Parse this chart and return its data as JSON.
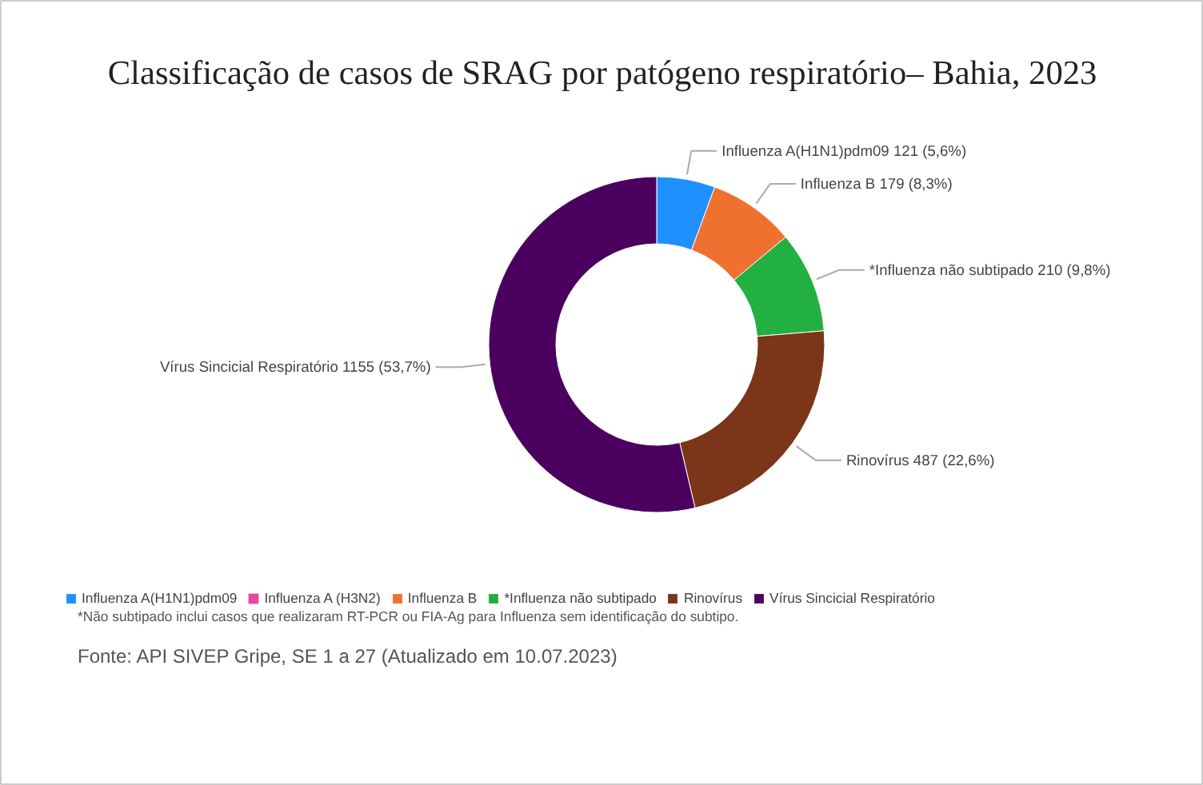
{
  "chart_data": {
    "type": "donut",
    "title": "Classificação de casos de SRAG por patógeno respiratório– Bahia, 2023",
    "categories": [
      "Influenza A(H1N1)pdm09",
      "Influenza A (H3N2)",
      "Influenza B",
      "*Influenza não subtipado",
      "Rinovírus",
      "Vírus Sincicial Respiratório"
    ],
    "values": [
      121,
      0,
      179,
      210,
      487,
      1155
    ],
    "value_labels": [
      "121 (5,6%)",
      null,
      "179 (8,3%)",
      "210 (9,8%)",
      "487 (22,6%)",
      "1155 (53,7%)"
    ],
    "colors": [
      "#1e90ff",
      "#e8479a",
      "#f07030",
      "#22b040",
      "#7b3518",
      "#4b0060"
    ],
    "legend": "bottom left",
    "annotations": [
      "*Não subtipado inclui casos que realizaram RT-PCR ou FIA-Ag para Influenza sem identificação do subtipo.",
      "Fonte: API SIVEP Gripe, SE 1 a 27 (Atualizado em 10.07.2023)"
    ]
  }
}
